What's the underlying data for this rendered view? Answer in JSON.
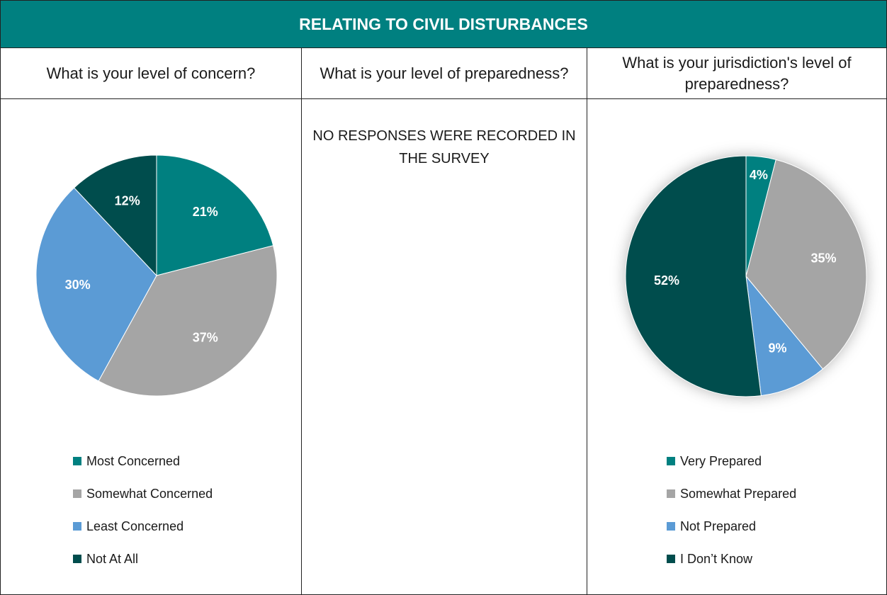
{
  "title": "RELATING TO CIVIL DISTURBANCES",
  "columns": [
    {
      "question": "What is your level of concern?"
    },
    {
      "question": "What is your level of preparedness?",
      "note": "NO RESPONSES WERE RECORDED IN THE SURVEY"
    },
    {
      "question": "What is your jurisdiction's level of preparedness?"
    }
  ],
  "chart_data": [
    {
      "type": "pie",
      "categories": [
        "Most Concerned",
        "Somewhat Concerned",
        "Least Concerned",
        "Not At All"
      ],
      "values": [
        21,
        37,
        30,
        12
      ],
      "labels": [
        "21%",
        "37%",
        "30%",
        "12%"
      ],
      "colors": [
        "#008080",
        "#a5a5a5",
        "#5b9bd5",
        "#004d4d"
      ],
      "legend": "bottom"
    },
    {
      "type": "pie",
      "categories": [
        "Very Prepared",
        "Somewhat Prepared",
        "Not Prepared",
        "I Don’t Know"
      ],
      "values": [
        4,
        35,
        9,
        52
      ],
      "labels": [
        "4%",
        "35%",
        "9%",
        "52%"
      ],
      "colors": [
        "#008080",
        "#a5a5a5",
        "#5b9bd5",
        "#004d4d"
      ],
      "legend": "bottom"
    }
  ]
}
